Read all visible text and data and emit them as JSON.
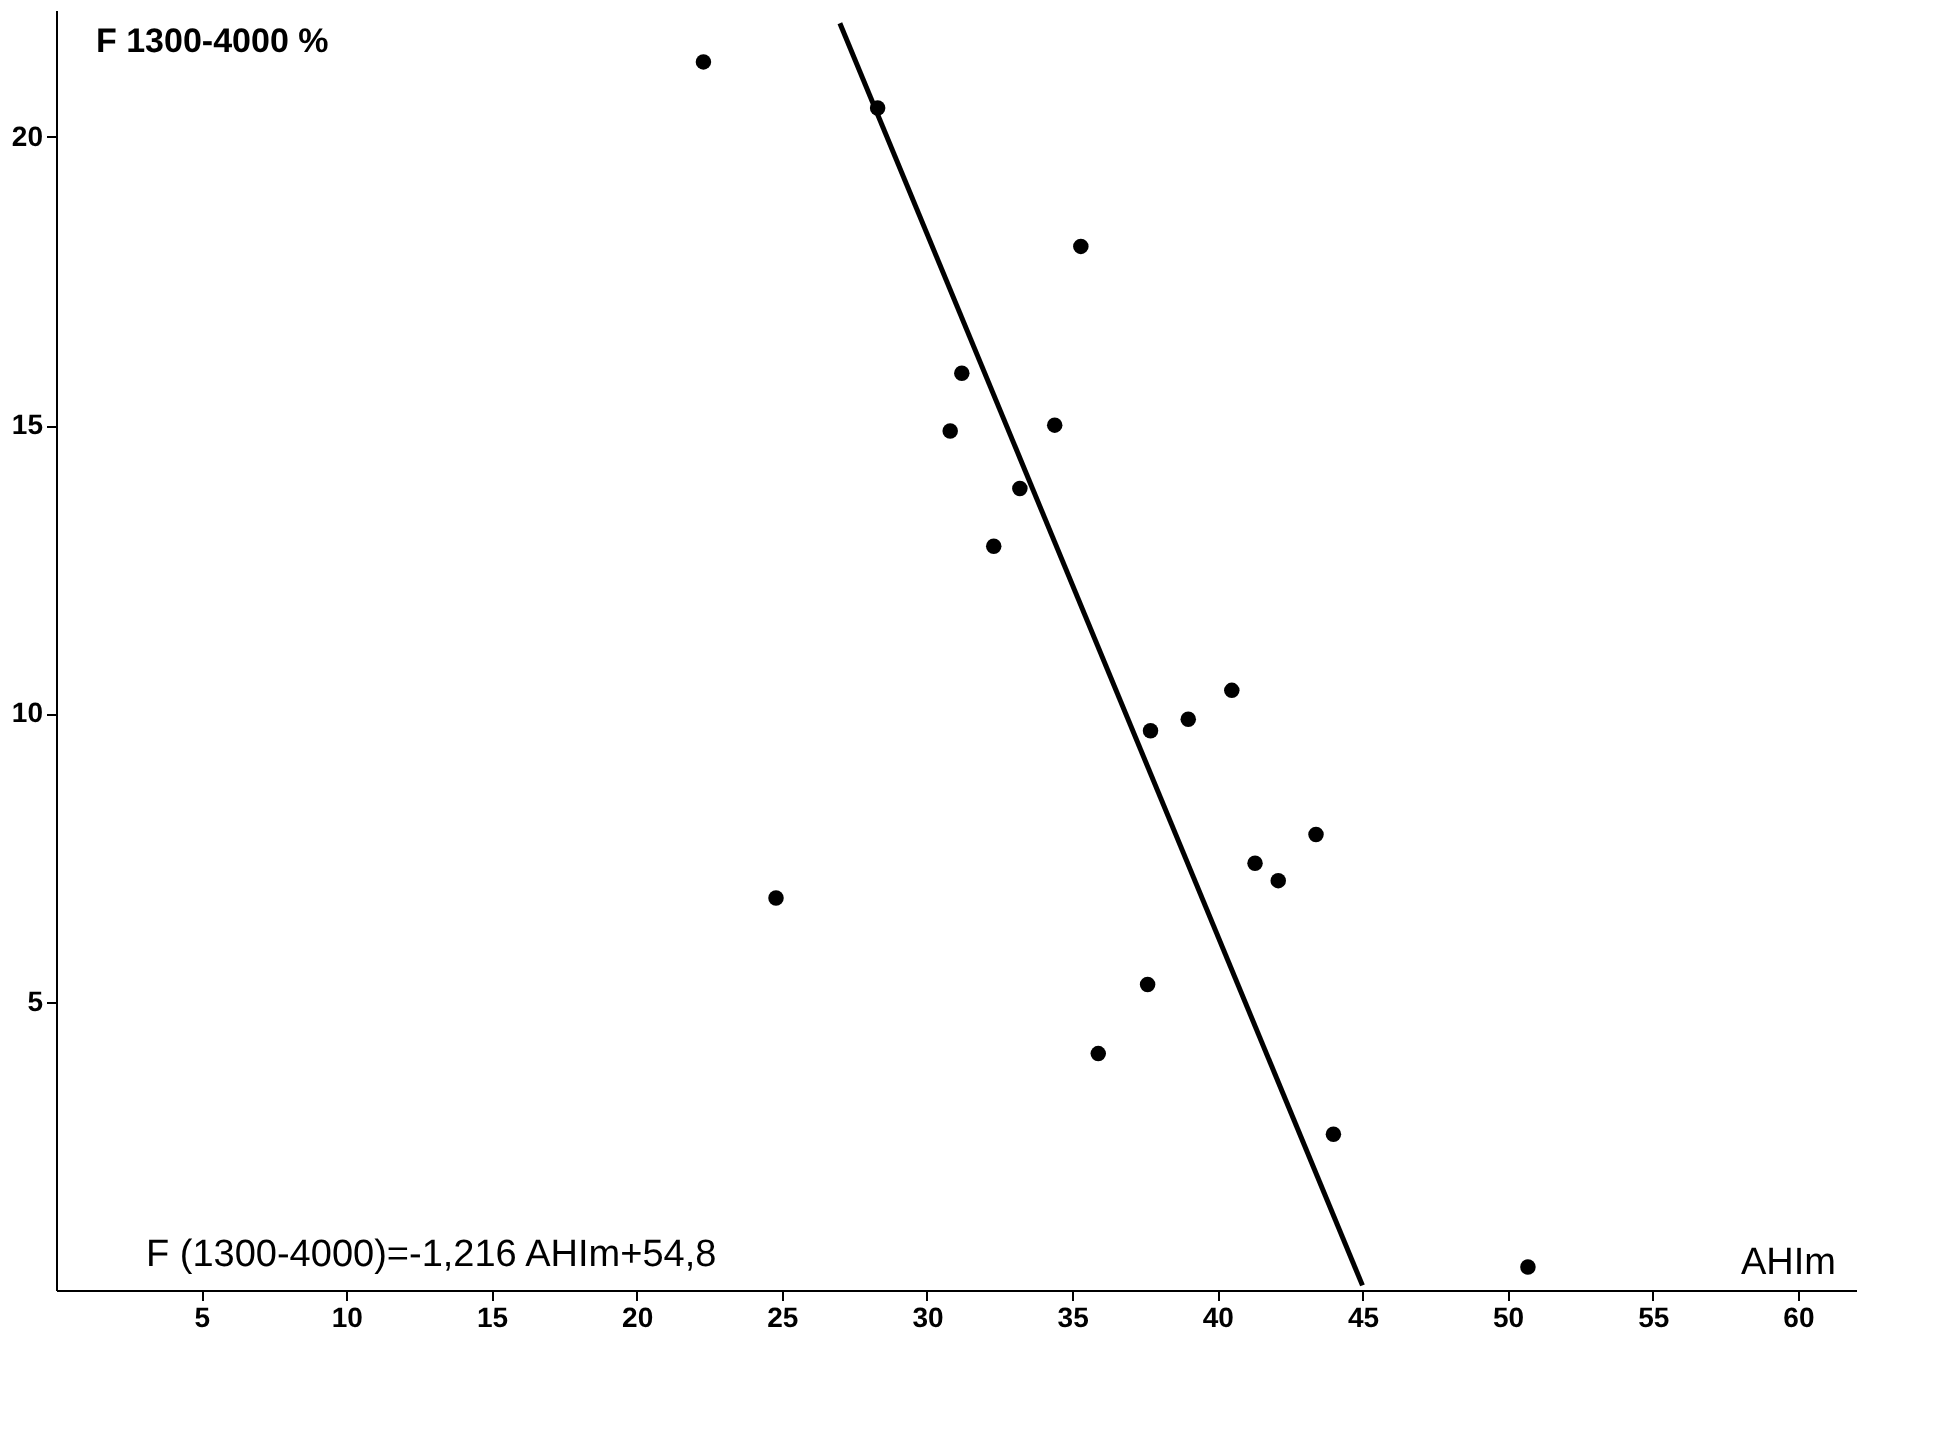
{
  "chart_data": {
    "type": "scatter",
    "ylabel": "F 1300-4000 %",
    "xlabel": "AHIm",
    "annotations": [
      "F (1300-4000)=-1,216 AHIm+54,8"
    ],
    "xlim": [
      0,
      62
    ],
    "ylim": [
      0,
      22.2
    ],
    "xticks": [
      5,
      10,
      15,
      20,
      25,
      30,
      35,
      40,
      45,
      50,
      55,
      60
    ],
    "yticks": [
      5,
      10,
      15,
      20
    ],
    "grid": false,
    "series": [
      {
        "color": "#000000",
        "marker": "circle",
        "x": [
          22.3,
          28.3,
          35.3,
          31.2,
          30.8,
          34.4,
          33.2,
          32.3,
          24.8,
          40.5,
          37.7,
          39.0,
          43.4,
          41.3,
          42.1,
          37.6,
          35.9,
          44.0,
          50.7
        ],
        "values": [
          21.3,
          20.5,
          18.1,
          15.9,
          14.9,
          15.0,
          13.9,
          12.9,
          6.8,
          10.4,
          9.7,
          9.9,
          7.9,
          7.4,
          7.1,
          5.3,
          4.1,
          2.7,
          0.4
        ]
      },
      {
        "type": "line",
        "color": "#000000",
        "x": [
          27,
          45
        ],
        "values": [
          21.97,
          0.08
        ]
      }
    ]
  }
}
